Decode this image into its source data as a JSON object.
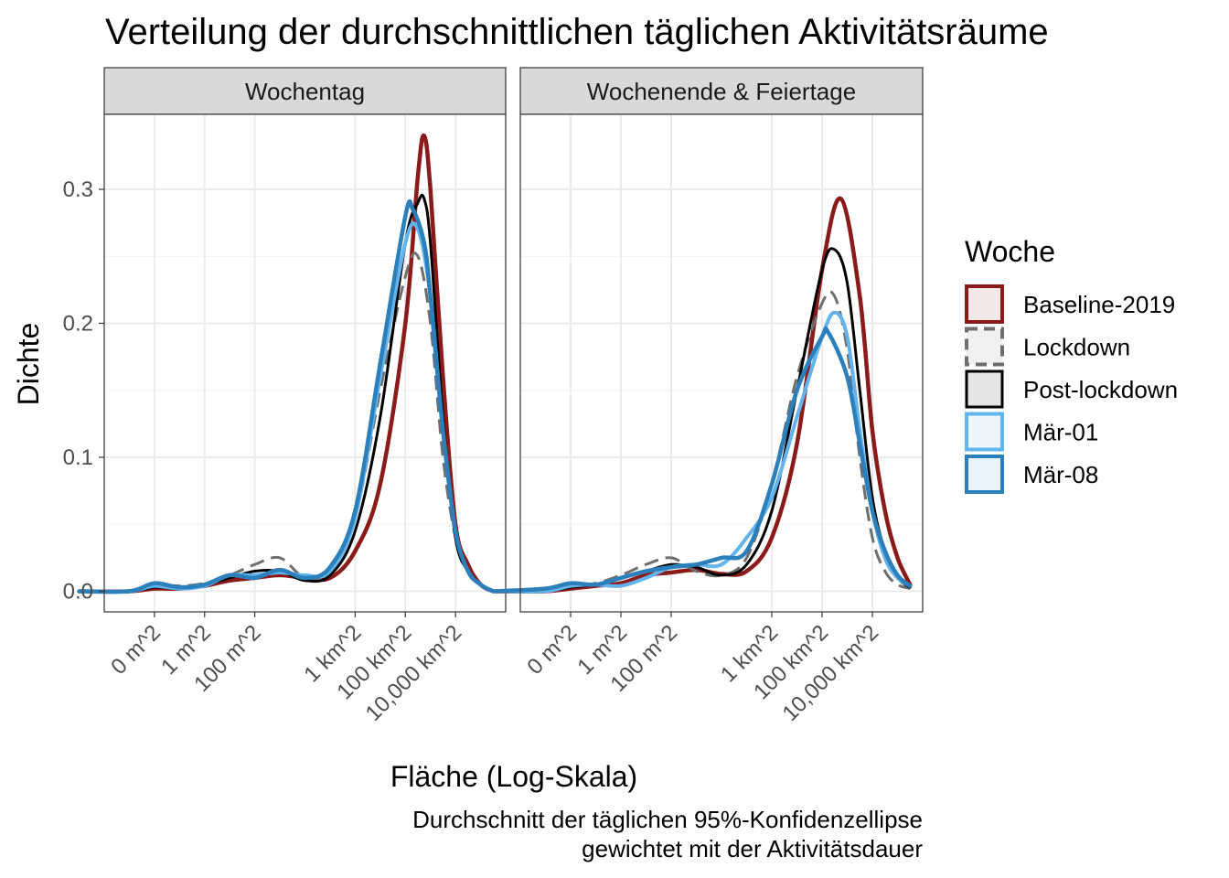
{
  "chart_data": {
    "type": "line",
    "title": "Verteilung der durchschnittlichen täglichen Aktivitätsräume",
    "xlabel": "Fläche (Log-Skala)",
    "ylabel": "Dichte",
    "caption_lines": [
      "Durchschnitt der täglichen 95%-Konfidenzellipse",
      "gewichtet mit der Aktivitätsdauer"
    ],
    "x_scale": "log10",
    "x_unit": "m^2",
    "xlim": [
      0.0001,
      1000000000000
    ],
    "ylim": [
      0,
      0.34
    ],
    "grid": true,
    "legend_position": "right",
    "x_ticks": [
      {
        "value": 0.01,
        "label": "0 m^2"
      },
      {
        "value": 1,
        "label": "1 m^2"
      },
      {
        "value": 100,
        "label": "100 m^2"
      },
      {
        "value": 1000000,
        "label": "1 km^2"
      },
      {
        "value": 100000000,
        "label": "100 km^2"
      },
      {
        "value": 10000000000,
        "label": "10,000 km^2"
      }
    ],
    "y_ticks": [
      {
        "value": 0.0,
        "label": "0.0"
      },
      {
        "value": 0.1,
        "label": "0.1"
      },
      {
        "value": 0.2,
        "label": "0.2"
      },
      {
        "value": 0.3,
        "label": "0.3"
      }
    ],
    "legend": {
      "title": "Woche",
      "entries": [
        {
          "label": "Baseline-2019",
          "color": "#8B1A1A",
          "dash": "solid"
        },
        {
          "label": "Lockdown",
          "color": "#6E6E6E",
          "dash": "dashed"
        },
        {
          "label": "Post-lockdown",
          "color": "#000000",
          "dash": "solid"
        },
        {
          "label": "Mär-01",
          "color": "#63B3ED",
          "dash": "solid"
        },
        {
          "label": "Mär-08",
          "color": "#2B7FBB",
          "dash": "solid"
        }
      ]
    },
    "panels": [
      {
        "label": "Wochentag",
        "series": [
          {
            "name": "Baseline-2019",
            "points": [
              [
                -5,
                0
              ],
              [
                -3,
                0
              ],
              [
                -2,
                0.002
              ],
              [
                -1,
                0.002
              ],
              [
                0,
                0.004
              ],
              [
                1,
                0.008
              ],
              [
                2,
                0.01
              ],
              [
                3,
                0.012
              ],
              [
                4,
                0.01
              ],
              [
                5,
                0.01
              ],
              [
                6,
                0.03
              ],
              [
                7,
                0.08
              ],
              [
                8,
                0.2
              ],
              [
                8.5,
                0.31
              ],
              [
                8.75,
                0.34
              ],
              [
                9,
                0.3
              ],
              [
                9.5,
                0.16
              ],
              [
                10,
                0.05
              ],
              [
                10.5,
                0.02
              ],
              [
                11,
                0.005
              ],
              [
                11.5,
                0
              ]
            ]
          },
          {
            "name": "Lockdown",
            "points": [
              [
                -5,
                0
              ],
              [
                -3,
                0
              ],
              [
                -2,
                0.005
              ],
              [
                -1,
                0.004
              ],
              [
                0,
                0.006
              ],
              [
                1,
                0.012
              ],
              [
                2,
                0.02
              ],
              [
                3,
                0.025
              ],
              [
                4,
                0.01
              ],
              [
                5,
                0.015
              ],
              [
                6,
                0.055
              ],
              [
                7,
                0.15
              ],
              [
                8,
                0.235
              ],
              [
                8.5,
                0.25
              ],
              [
                9,
                0.2
              ],
              [
                9.5,
                0.1
              ],
              [
                10,
                0.04
              ],
              [
                10.5,
                0.015
              ],
              [
                11,
                0.005
              ],
              [
                11.5,
                0
              ]
            ]
          },
          {
            "name": "Post-lockdown",
            "points": [
              [
                -5,
                0
              ],
              [
                -3,
                0
              ],
              [
                -2,
                0.003
              ],
              [
                -1,
                0.003
              ],
              [
                0,
                0.005
              ],
              [
                1,
                0.01
              ],
              [
                2,
                0.015
              ],
              [
                3,
                0.015
              ],
              [
                4,
                0.008
              ],
              [
                5,
                0.012
              ],
              [
                6,
                0.045
              ],
              [
                7,
                0.13
              ],
              [
                8,
                0.26
              ],
              [
                8.5,
                0.29
              ],
              [
                8.75,
                0.293
              ],
              [
                9,
                0.26
              ],
              [
                9.5,
                0.13
              ],
              [
                10,
                0.04
              ],
              [
                10.5,
                0.015
              ],
              [
                11,
                0.005
              ],
              [
                11.5,
                0
              ]
            ]
          },
          {
            "name": "Mär-01",
            "points": [
              [
                -5,
                0
              ],
              [
                -3,
                0
              ],
              [
                -2,
                0.004
              ],
              [
                -1,
                0.002
              ],
              [
                0,
                0.004
              ],
              [
                1,
                0.012
              ],
              [
                2,
                0.012
              ],
              [
                3,
                0.014
              ],
              [
                4,
                0.012
              ],
              [
                5,
                0.015
              ],
              [
                6,
                0.055
              ],
              [
                7,
                0.16
              ],
              [
                8,
                0.26
              ],
              [
                8.5,
                0.27
              ],
              [
                9,
                0.22
              ],
              [
                9.5,
                0.12
              ],
              [
                10,
                0.045
              ],
              [
                10.5,
                0.015
              ],
              [
                11,
                0.005
              ],
              [
                11.5,
                0
              ]
            ]
          },
          {
            "name": "Mär-08",
            "points": [
              [
                -5,
                0
              ],
              [
                -3,
                0
              ],
              [
                -2,
                0.006
              ],
              [
                -1,
                0.003
              ],
              [
                0,
                0.005
              ],
              [
                1,
                0.012
              ],
              [
                2,
                0.01
              ],
              [
                3,
                0.016
              ],
              [
                4,
                0.01
              ],
              [
                5,
                0.018
              ],
              [
                6,
                0.06
              ],
              [
                7,
                0.17
              ],
              [
                8,
                0.28
              ],
              [
                8.3,
                0.285
              ],
              [
                8.75,
                0.26
              ],
              [
                9,
                0.22
              ],
              [
                9.5,
                0.12
              ],
              [
                10,
                0.045
              ],
              [
                10.5,
                0.015
              ],
              [
                11,
                0.005
              ],
              [
                11.5,
                0
              ]
            ]
          }
        ]
      },
      {
        "label": "Wochenende & Feiertage",
        "series": [
          {
            "name": "Baseline-2019",
            "points": [
              [
                -5,
                0
              ],
              [
                -3,
                0
              ],
              [
                -2,
                0.002
              ],
              [
                -1,
                0.004
              ],
              [
                0,
                0.006
              ],
              [
                1,
                0.012
              ],
              [
                2,
                0.014
              ],
              [
                3,
                0.016
              ],
              [
                4,
                0.013
              ],
              [
                5,
                0.015
              ],
              [
                6,
                0.04
              ],
              [
                7,
                0.11
              ],
              [
                8,
                0.24
              ],
              [
                8.75,
                0.293
              ],
              [
                9.5,
                0.22
              ],
              [
                10,
                0.12
              ],
              [
                10.5,
                0.06
              ],
              [
                11,
                0.025
              ],
              [
                11.5,
                0.005
              ]
            ]
          },
          {
            "name": "Lockdown",
            "points": [
              [
                -5,
                0
              ],
              [
                -3,
                0
              ],
              [
                -2,
                0.004
              ],
              [
                -1,
                0.006
              ],
              [
                0,
                0.012
              ],
              [
                1,
                0.02
              ],
              [
                2,
                0.025
              ],
              [
                3,
                0.015
              ],
              [
                4,
                0.012
              ],
              [
                5,
                0.025
              ],
              [
                6,
                0.08
              ],
              [
                7,
                0.16
              ],
              [
                8,
                0.215
              ],
              [
                8.5,
                0.22
              ],
              [
                9,
                0.18
              ],
              [
                9.5,
                0.1
              ],
              [
                10,
                0.04
              ],
              [
                10.5,
                0.015
              ],
              [
                11,
                0.005
              ],
              [
                11.5,
                0.002
              ]
            ]
          },
          {
            "name": "Post-lockdown",
            "points": [
              [
                -5,
                0
              ],
              [
                -3,
                0
              ],
              [
                -2,
                0.003
              ],
              [
                -1,
                0.005
              ],
              [
                0,
                0.01
              ],
              [
                1,
                0.015
              ],
              [
                2,
                0.02
              ],
              [
                3,
                0.018
              ],
              [
                4,
                0.012
              ],
              [
                5,
                0.02
              ],
              [
                6,
                0.06
              ],
              [
                7,
                0.15
              ],
              [
                8,
                0.24
              ],
              [
                8.5,
                0.255
              ],
              [
                9,
                0.23
              ],
              [
                9.5,
                0.15
              ],
              [
                10,
                0.07
              ],
              [
                10.5,
                0.03
              ],
              [
                11,
                0.01
              ],
              [
                11.5,
                0.003
              ]
            ]
          },
          {
            "name": "Mär-01",
            "points": [
              [
                -5,
                0
              ],
              [
                -3,
                0
              ],
              [
                -2,
                0.004
              ],
              [
                -1,
                0.005
              ],
              [
                0,
                0.004
              ],
              [
                1,
                0.01
              ],
              [
                2,
                0.018
              ],
              [
                3,
                0.02
              ],
              [
                4,
                0.02
              ],
              [
                5,
                0.04
              ],
              [
                6,
                0.07
              ],
              [
                7,
                0.13
              ],
              [
                8,
                0.19
              ],
              [
                8.5,
                0.208
              ],
              [
                9,
                0.19
              ],
              [
                9.5,
                0.12
              ],
              [
                10,
                0.06
              ],
              [
                10.5,
                0.025
              ],
              [
                11,
                0.01
              ],
              [
                11.5,
                0.004
              ]
            ]
          },
          {
            "name": "Mär-08",
            "points": [
              [
                -5,
                0
              ],
              [
                -3,
                0.002
              ],
              [
                -2,
                0.006
              ],
              [
                -1,
                0.005
              ],
              [
                0,
                0.01
              ],
              [
                1,
                0.015
              ],
              [
                2,
                0.018
              ],
              [
                3,
                0.02
              ],
              [
                4,
                0.025
              ],
              [
                5,
                0.03
              ],
              [
                6,
                0.08
              ],
              [
                7,
                0.15
              ],
              [
                8,
                0.19
              ],
              [
                8.25,
                0.193
              ],
              [
                9,
                0.16
              ],
              [
                9.5,
                0.11
              ],
              [
                10,
                0.06
              ],
              [
                10.5,
                0.03
              ],
              [
                11,
                0.012
              ],
              [
                11.5,
                0.004
              ]
            ]
          }
        ]
      }
    ]
  }
}
